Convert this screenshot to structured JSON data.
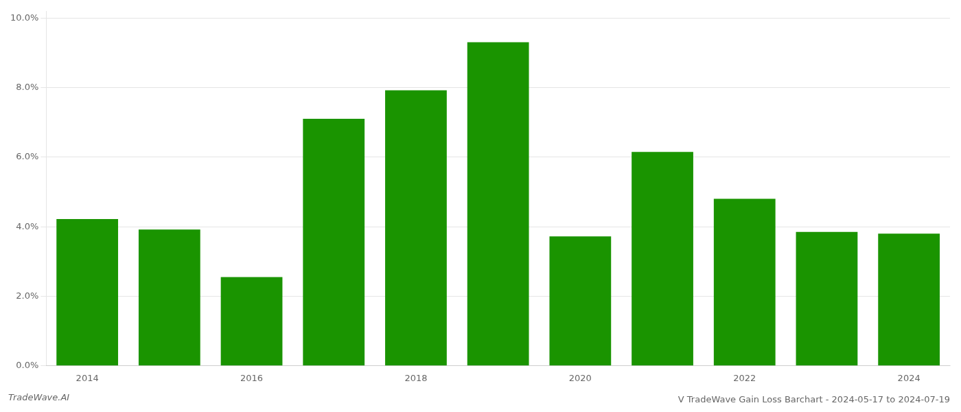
{
  "chart_data": {
    "type": "bar",
    "title": "V TradeWave Gain Loss Barchart - 2024-05-17 to 2024-07-19",
    "annotations": [
      "TradeWave.AI"
    ],
    "categories": [
      "2014",
      null,
      "2016",
      null,
      "2018",
      null,
      "2020",
      null,
      "2022",
      null,
      "2024"
    ],
    "values": [
      0.0422,
      0.0392,
      0.0255,
      0.071,
      0.0792,
      0.093,
      0.0372,
      0.0615,
      0.048,
      0.0385,
      0.038
    ],
    "color": "#1a9400",
    "ylim": [
      0,
      0.102
    ],
    "yticks": [
      {
        "value": 0.0,
        "label": "0.0%"
      },
      {
        "value": 0.02,
        "label": "2.0%"
      },
      {
        "value": 0.04,
        "label": "4.0%"
      },
      {
        "value": 0.06,
        "label": "6.0%"
      },
      {
        "value": 0.08,
        "label": "8.0%"
      },
      {
        "value": 0.1,
        "label": "10.0%"
      }
    ],
    "grid": true
  }
}
